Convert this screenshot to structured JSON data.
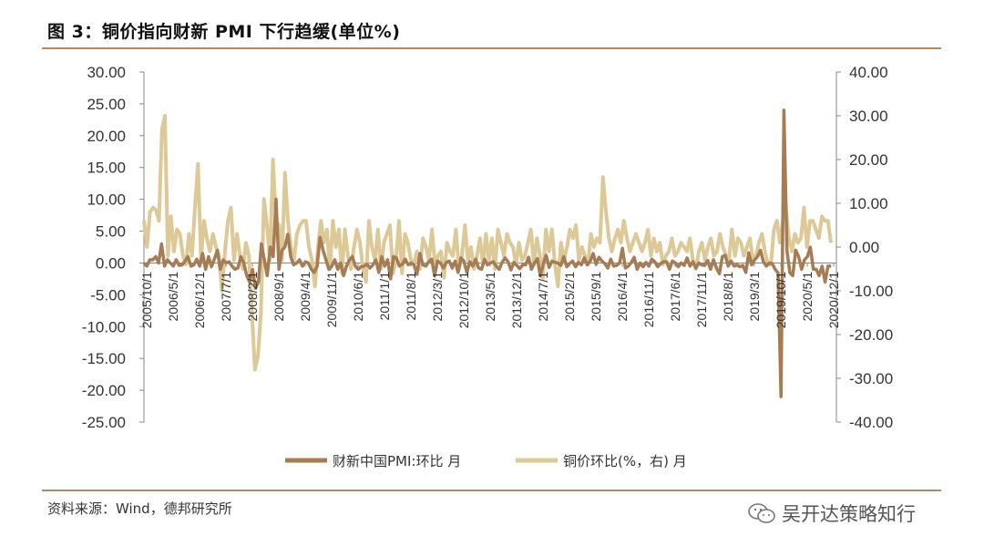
{
  "title": "图 3：铜价指向财新 PMI 下行趋缓(单位%)",
  "source": "资料来源：Wind，德邦研究所",
  "watermark": "吴开达策略知行",
  "colors": {
    "rule": "#b58a5e",
    "pmi": "#a67c52",
    "copper": "#ddc996"
  },
  "chart_data": {
    "type": "line",
    "y_left": {
      "lim": [
        -25,
        30
      ],
      "ticks": [
        "30.00",
        "25.00",
        "20.00",
        "15.00",
        "10.00",
        "5.00",
        "0.00",
        "-5.00",
        "-10.00",
        "-15.00",
        "-20.00",
        "-25.00"
      ]
    },
    "y_right": {
      "lim": [
        -40,
        40
      ],
      "ticks": [
        "40.00",
        "30.00",
        "20.00",
        "10.00",
        "0.00",
        "-10.00",
        "-20.00",
        "-30.00",
        "-40.00"
      ]
    },
    "x_labels": [
      "2005/10/1",
      "2006/5/1",
      "2006/12/1",
      "2007/7/1",
      "2008/2/1",
      "2008/9/1",
      "2009/4/1",
      "2009/11/1",
      "2010/6/1",
      "2011/1/1",
      "2011/8/1",
      "2012/3/1",
      "2012/10/1",
      "2013/5/1",
      "2013/12/1",
      "2014/7/1",
      "2015/2/1",
      "2015/9/1",
      "2016/4/1",
      "2016/11/1",
      "2017/6/1",
      "2017/11/1",
      "2018/8/1",
      "2019/3/1",
      "2019/10/1",
      "2020/5/1",
      "2020/12/1"
    ],
    "series": [
      {
        "name": "财新中国PMI:环比 月",
        "axis": "left",
        "values": [
          0.0,
          -0.5,
          0.5,
          0.5,
          1.0,
          0.0,
          3.0,
          -0.5,
          0.5,
          0.0,
          -0.5,
          0.5,
          -0.4,
          -0.3,
          0.3,
          1.0,
          -0.5,
          -0.3,
          0.6,
          -0.5,
          1.5,
          -1.0,
          1.0,
          -0.6,
          0.6,
          2.0,
          -1.0,
          0.5,
          0.0,
          0.2,
          -0.5,
          -1.0,
          -0.8,
          1.0,
          0.0,
          -2.0,
          -3.0,
          -1.0,
          -4.0,
          -3.0,
          3.0,
          0.5,
          -2.0,
          2.5,
          1.0,
          10.0,
          -1.0,
          2.0,
          2.5,
          4.5,
          1.0,
          -0.3,
          0.0,
          0.5,
          -0.5,
          0.2,
          0.0,
          -1.0,
          -1.5,
          -0.5,
          4.0,
          2.0,
          0.5,
          -1.0,
          -0.5,
          0.5,
          -1.0,
          0.0,
          -2.0,
          -0.5,
          0.5,
          1.0,
          -0.5,
          -1.0,
          -0.6,
          -0.5,
          -0.2,
          -0.8,
          -0.3,
          0.5,
          -1.5,
          1.0,
          -0.5,
          0.5,
          -2.5,
          1.0,
          0.8,
          -0.5,
          -0.2,
          0.6,
          -0.3,
          0.0,
          -0.3,
          -1.8,
          1.5,
          -0.3,
          -0.5,
          0.2,
          0.6,
          -2.0,
          0.3,
          0.0,
          -0.8,
          0.1,
          0.3,
          -0.8,
          0.3,
          -1.5,
          0.8,
          0.3,
          -1.5,
          0.2,
          -0.5,
          0.6,
          -0.8,
          -1.0,
          0.6,
          -0.3,
          0.0,
          0.2,
          -0.5,
          -1.0,
          0.1,
          0.8,
          0.2,
          -1.1,
          0.1,
          -0.4,
          -0.9,
          -0.3,
          -0.3,
          0.9,
          -1.0,
          0.0,
          0.7,
          -2.0,
          -0.2,
          1.2,
          -0.7,
          0.3,
          0.1,
          0.0,
          -0.4,
          1.0,
          -0.6,
          -0.1,
          0.3,
          -0.6,
          0.1,
          -0.3,
          0.8,
          -0.3,
          0.3,
          1.5,
          -0.2,
          0.9,
          0.3,
          -0.1,
          -0.8,
          0.6,
          -0.5,
          -0.4,
          0.0,
          2.3,
          -0.8,
          -0.5,
          0.1,
          0.9,
          -1.0,
          0.0,
          -0.6,
          0.1,
          -0.5,
          0.6,
          0.2,
          -0.6,
          -0.1,
          0.2,
          0.2,
          -1.0,
          0.3,
          0.0,
          -0.6,
          0.0,
          -0.4,
          0.8,
          -0.5,
          0.2,
          -0.8,
          0.0,
          -0.3,
          -0.4,
          0.4,
          -1.0,
          0.5,
          -0.8,
          -1.7,
          1.0,
          1.2,
          -0.5,
          0.3,
          -0.5,
          -0.3,
          -0.6,
          -0.4,
          -1.5,
          1.6,
          -0.3,
          0.5,
          1.0,
          2.0,
          0.2,
          -0.5,
          0.0,
          -0.1,
          -1.0,
          -1.6,
          -21.0,
          24.0,
          2.0,
          -1.5,
          -2.0,
          2.0,
          1.0,
          -1.0,
          0.5,
          1.0,
          2.5,
          -1.0,
          -1.0,
          -2.0,
          -0.5,
          -3.0,
          -0.5,
          -0.5
        ],
        "color": "#a67c52"
      },
      {
        "name": "铜价环比(%，右) 月",
        "axis": "right",
        "values": [
          6.0,
          0.0,
          8.0,
          9.0,
          8.5,
          6.0,
          27.0,
          30.0,
          -2.0,
          7.0,
          -1.0,
          4.0,
          3.0,
          -2.0,
          -4.0,
          3.0,
          -2.0,
          9.0,
          19.0,
          -3.0,
          6.0,
          2.0,
          -1.0,
          3.0,
          0.0,
          -2.0,
          -10.0,
          -1.0,
          6.0,
          9.0,
          -3.0,
          3.0,
          -2.0,
          -5.0,
          1.0,
          -2.0,
          -15.0,
          -28.0,
          -25.0,
          -15.0,
          11.0,
          5.0,
          -3.0,
          20.0,
          6.0,
          5.0,
          -3.0,
          17.0,
          6.0,
          0.0,
          -3.0,
          3.0,
          5.0,
          6.0,
          6.0,
          0.0,
          -3.0,
          -9.0,
          0.0,
          6.0,
          1.0,
          4.0,
          -5.0,
          6.0,
          0.0,
          4.0,
          -6.0,
          4.0,
          -2.0,
          -5.0,
          0.0,
          4.0,
          1.0,
          -5.0,
          -8.0,
          6.0,
          0.0,
          -3.0,
          4.0,
          -5.0,
          1.0,
          3.0,
          5.0,
          -6.0,
          -3.0,
          6.0,
          -6.0,
          3.0,
          1.0,
          -3.0,
          -4.0,
          -1.0,
          -5.0,
          2.0,
          0.0,
          -3.0,
          4.0,
          -4.0,
          -2.0,
          -1.0,
          -7.0,
          1.0,
          -1.0,
          -2.0,
          4.0,
          -5.0,
          -2.0,
          5.0,
          -3.0,
          0.0,
          -5.0,
          -2.0,
          2.0,
          -4.0,
          3.0,
          -3.0,
          2.0,
          -5.0,
          4.0,
          1.0,
          -2.0,
          3.0,
          1.0,
          0.0,
          -4.0,
          1.0,
          -3.0,
          -2.0,
          1.0,
          4.0,
          -4.0,
          2.0,
          -2.0,
          -7.0,
          4.0,
          -1.0,
          4.0,
          -4.0,
          -9.0,
          1.0,
          -3.0,
          0.0,
          4.0,
          2.0,
          5.0,
          -3.0,
          0.0,
          -2.0,
          -4.0,
          3.0,
          0.0,
          2.0,
          1.0,
          16.0,
          8.0,
          2.0,
          -1.0,
          2.0,
          4.0,
          1.0,
          6.0,
          2.0,
          -1.0,
          1.0,
          3.0,
          1.0,
          -1.0,
          1.0,
          4.0,
          -2.0,
          2.0,
          -1.0,
          1.0,
          -4.0,
          -2.0,
          -1.0,
          2.0,
          -2.0,
          -1.0,
          1.0,
          0.0,
          -1.0,
          2.0,
          -3.0,
          -5.0,
          -1.0,
          1.0,
          -3.0,
          0.0,
          2.0,
          -2.0,
          -1.0,
          3.0,
          0.0,
          -2.0,
          -3.0,
          4.0,
          -2.0,
          2.0,
          1.0,
          -2.0,
          0.0,
          2.0,
          -3.0,
          -2.0,
          1.0,
          3.0,
          -1.0,
          -4.0,
          -4.0,
          4.0,
          6.0,
          1.0,
          6.0,
          9.0,
          2.0,
          -1.0,
          3.0,
          1.0,
          2.0,
          9.0,
          0.0,
          6.0,
          6.0,
          4.0,
          2.0,
          7.0,
          6.0,
          6.0,
          1.0
        ],
        "color": "#ddc996"
      }
    ],
    "legend_position": "bottom"
  }
}
